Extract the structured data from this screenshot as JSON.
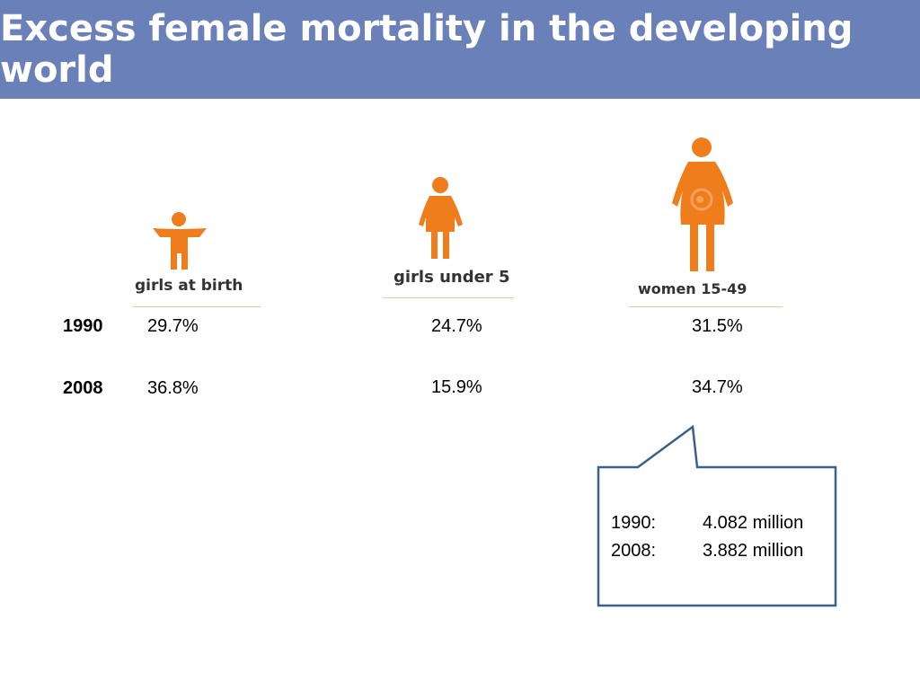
{
  "colors": {
    "header_bg": "#6a80b9",
    "figure_orange": "#ef7d1b",
    "divider": "#f7c59a",
    "callout_border": "#3d5f8c"
  },
  "header": {
    "title": "Excess female mortality in the developing world"
  },
  "groups": [
    {
      "label": "girls at birth",
      "icon": "baby-girl-icon",
      "v1990": "29.7%",
      "v2008": "36.8%"
    },
    {
      "label": "girls under 5",
      "icon": "girl-icon",
      "v1990": "24.7%",
      "v2008": "15.9%"
    },
    {
      "label": "women 15-49",
      "icon": "pregnant-woman-icon",
      "v1990": "31.5%",
      "v2008": "34.7%"
    }
  ],
  "rows": {
    "y1990": "1990",
    "y2008": "2008"
  },
  "callout": {
    "line1_year": "1990:",
    "line1_value": "4.082 million",
    "line2_year": "2008:",
    "line2_value": "3.882 million"
  }
}
